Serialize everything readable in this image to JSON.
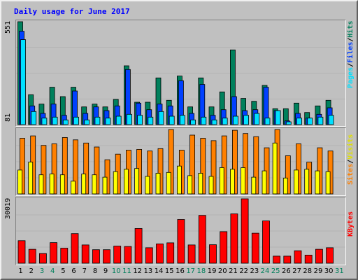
{
  "chart_data": {
    "type": "bar",
    "title": "Daily usage for June 2017",
    "categories": [
      "1",
      "2",
      "3",
      "4",
      "5",
      "6",
      "7",
      "8",
      "9",
      "10",
      "11",
      "12",
      "13",
      "14",
      "15",
      "16",
      "17",
      "18",
      "19",
      "20",
      "21",
      "22",
      "23",
      "24",
      "25",
      "26",
      "27",
      "28",
      "29",
      "30",
      "31"
    ],
    "weekend_days": [
      "3",
      "4",
      "10",
      "11",
      "17",
      "18",
      "24",
      "25",
      "31"
    ],
    "colors": {
      "hits": "#00805c",
      "files": "#0040ff",
      "pages": "#00e0ff",
      "sites": "#ff8000",
      "visits": "#ffff00",
      "kbytes": "#ff0000",
      "weekday_label": "#000000",
      "weekend_label": "#00805c",
      "title": "#0000ff",
      "background": "#c0c0c0"
    },
    "panels": {
      "hits": {
        "max_label": "551",
        "ylim": [
          0,
          551
        ],
        "series": [
          {
            "name": "Hits",
            "values": [
              551,
              160,
              110,
              200,
              150,
              200,
              95,
              110,
              95,
              135,
              315,
              120,
              120,
              250,
              130,
              260,
              95,
              250,
              95,
              175,
              400,
              140,
              125,
              210,
              85,
              85,
              115,
              65,
              100,
              130,
              0
            ]
          },
          {
            "name": "Files",
            "values": [
              500,
              100,
              60,
              110,
              50,
              180,
              60,
              95,
              75,
              100,
              295,
              115,
              80,
              110,
              100,
              235,
              60,
              215,
              50,
              80,
              150,
              75,
              80,
              200,
              75,
              20,
              60,
              35,
              55,
              90,
              0
            ]
          },
          {
            "name": "Pages",
            "values": [
              455,
              70,
              35,
              40,
              25,
              40,
              25,
              40,
              35,
              45,
              55,
              50,
              40,
              70,
              45,
              50,
              25,
              40,
              25,
              35,
              45,
              50,
              60,
              35,
              75,
              15,
              35,
              35,
              40,
              50,
              0
            ]
          }
        ]
      },
      "sites": {
        "max_label": "81",
        "ylim": [
          0,
          81
        ],
        "series": [
          {
            "name": "Sites",
            "values": [
              70,
              73,
              61,
              63,
              71,
              68,
              64,
              59,
              43,
              50,
              55,
              56,
              54,
              57,
              81,
              55,
              74,
              70,
              67,
              73,
              80,
              76,
              72,
              58,
              81,
              48,
              63,
              40,
              58,
              54,
              0
            ]
          },
          {
            "name": "Visits",
            "values": [
              30,
              40,
              24,
              25,
              24,
              16,
              25,
              24,
              21,
              28,
              31,
              32,
              22,
              26,
              27,
              35,
              23,
              26,
              22,
              33,
              31,
              33,
              21,
              29,
              64,
              20,
              30,
              31,
              29,
              28,
              0
            ]
          }
        ]
      },
      "kbytes": {
        "max_label": "30019",
        "ylim": [
          0,
          30019
        ],
        "series": [
          {
            "name": "KBytes",
            "values": [
              10500,
              6500,
              4500,
              9600,
              7000,
              13800,
              8500,
              6300,
              6300,
              8000,
              7800,
              16200,
              7200,
              9000,
              9500,
              20400,
              8500,
              22300,
              8600,
              14700,
              23000,
              30019,
              14000,
              19700,
              3300,
              3300,
              5800,
              3800,
              6500,
              7200,
              0
            ]
          }
        ]
      }
    },
    "right_labels": {
      "hits": {
        "pages": "Pages",
        "files": "Files",
        "hits": "Hits",
        "sep": "/"
      },
      "sites": {
        "sites": "Sites",
        "visits": "Visits",
        "sep": "/"
      },
      "kbytes": {
        "kbytes": "KBytes"
      }
    }
  }
}
